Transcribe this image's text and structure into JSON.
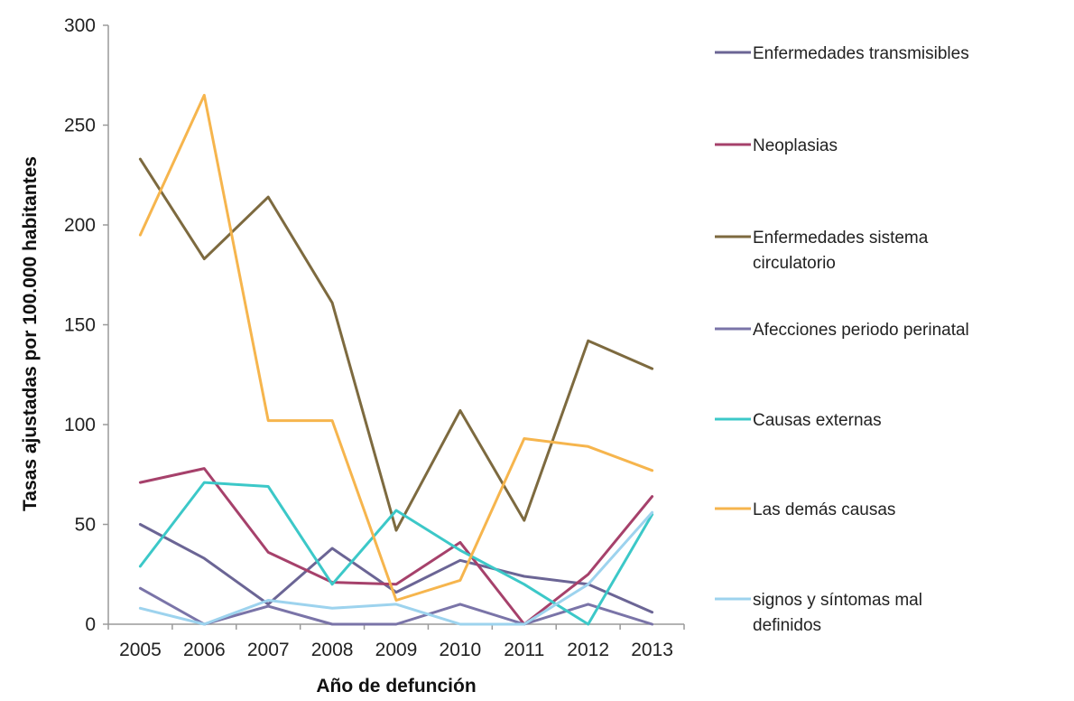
{
  "chart_data": {
    "type": "line",
    "title": "",
    "xlabel": "Año de defunción",
    "ylabel": "Tasas ajustadas por 100.000 habitantes",
    "x": [
      "2005",
      "2006",
      "2007",
      "2008",
      "2009",
      "2010",
      "2011",
      "2012",
      "2013"
    ],
    "ylim": [
      0,
      300
    ],
    "yticks": [
      0,
      50,
      100,
      150,
      200,
      250,
      300
    ],
    "grid": false,
    "legend_position": "right",
    "series": [
      {
        "name": "Enfermedades transmisibles",
        "color": "#6B6595",
        "values": [
          50,
          33,
          10,
          38,
          16,
          32,
          24,
          20,
          6
        ]
      },
      {
        "name": "Neoplasias",
        "color": "#A6416B",
        "values": [
          71,
          78,
          36,
          21,
          20,
          41,
          0,
          25,
          64
        ]
      },
      {
        "name": "Enfermedades sistema circulatorio",
        "color": "#7D6A3F",
        "values": [
          233,
          183,
          214,
          161,
          47,
          107,
          52,
          142,
          128
        ]
      },
      {
        "name": "Afecciones periodo perinatal",
        "color": "#7A74A8",
        "values": [
          18,
          0,
          9,
          0,
          0,
          10,
          0,
          10,
          0
        ]
      },
      {
        "name": "Causas externas",
        "color": "#3CC8C8",
        "values": [
          29,
          71,
          69,
          20,
          57,
          37,
          20,
          0,
          55
        ]
      },
      {
        "name": "Las demás causas",
        "color": "#F6B54D",
        "values": [
          195,
          265,
          102,
          102,
          12,
          22,
          93,
          89,
          77
        ]
      },
      {
        "name": "signos y síntomas mal definidos",
        "color": "#9DD3EE",
        "values": [
          8,
          0,
          12,
          8,
          10,
          0,
          0,
          20,
          56
        ]
      }
    ]
  }
}
